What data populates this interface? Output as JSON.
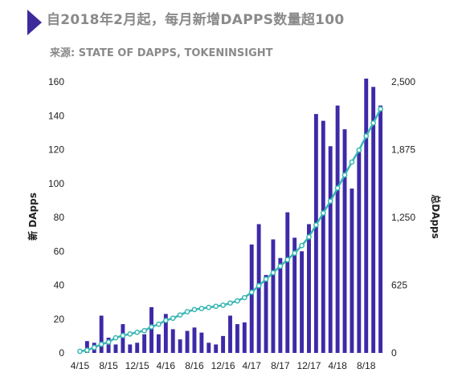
{
  "header": {
    "title": "自2018年2月起，每月新增DAPPS数量超100",
    "source": "来源: STATE OF DAPPS, TOKENINSIGHT",
    "accent_color": "#3f2a9c"
  },
  "chart_data": {
    "type": "bar",
    "title": "自2018年2月起，每月新增DAPPS数量超100",
    "ylabel_left": "新 DApps",
    "ylabel_right": "总DApps",
    "ylim_left": [
      0,
      160
    ],
    "ylim_right": [
      0,
      2500
    ],
    "yticks_left": [
      "0",
      "20",
      "40",
      "60",
      "80",
      "100",
      "120",
      "140",
      "160"
    ],
    "yticks_right": [
      "0",
      "625",
      "1,250",
      "1,875",
      "2,500"
    ],
    "grid": false,
    "x_tick_labels": [
      {
        "index": 0,
        "label": "4/15"
      },
      {
        "index": 4,
        "label": "8/15"
      },
      {
        "index": 8,
        "label": "12/15"
      },
      {
        "index": 12,
        "label": "4/16"
      },
      {
        "index": 16,
        "label": "8/16"
      },
      {
        "index": 20,
        "label": "12/16"
      },
      {
        "index": 24,
        "label": "4/17"
      },
      {
        "index": 28,
        "label": "8/17"
      },
      {
        "index": 32,
        "label": "12/17"
      },
      {
        "index": 36,
        "label": "4/18"
      },
      {
        "index": 40,
        "label": "8/18"
      }
    ],
    "series": [
      {
        "name": "新 DApps",
        "kind": "bar",
        "color": "#3d2aa8",
        "values": [
          1,
          7,
          6,
          22,
          9,
          5,
          17,
          5,
          6,
          11,
          27,
          11,
          23,
          14,
          8,
          13,
          15,
          12,
          6,
          5,
          10,
          22,
          17,
          18,
          64,
          76,
          46,
          67,
          56,
          83,
          68,
          60,
          76,
          141,
          137,
          122,
          146,
          132,
          97,
          120,
          168,
          157,
          146
        ]
      },
      {
        "name": "总DApps",
        "kind": "line",
        "color": "#38b7b3",
        "values": [
          15,
          25,
          50,
          80,
          100,
          140,
          160,
          175,
          190,
          205,
          240,
          265,
          300,
          320,
          350,
          380,
          400,
          410,
          420,
          430,
          440,
          460,
          480,
          510,
          560,
          620,
          680,
          740,
          800,
          860,
          920,
          990,
          1070,
          1180,
          1290,
          1400,
          1520,
          1640,
          1760,
          1870,
          2000,
          2120,
          2250
        ]
      }
    ]
  }
}
